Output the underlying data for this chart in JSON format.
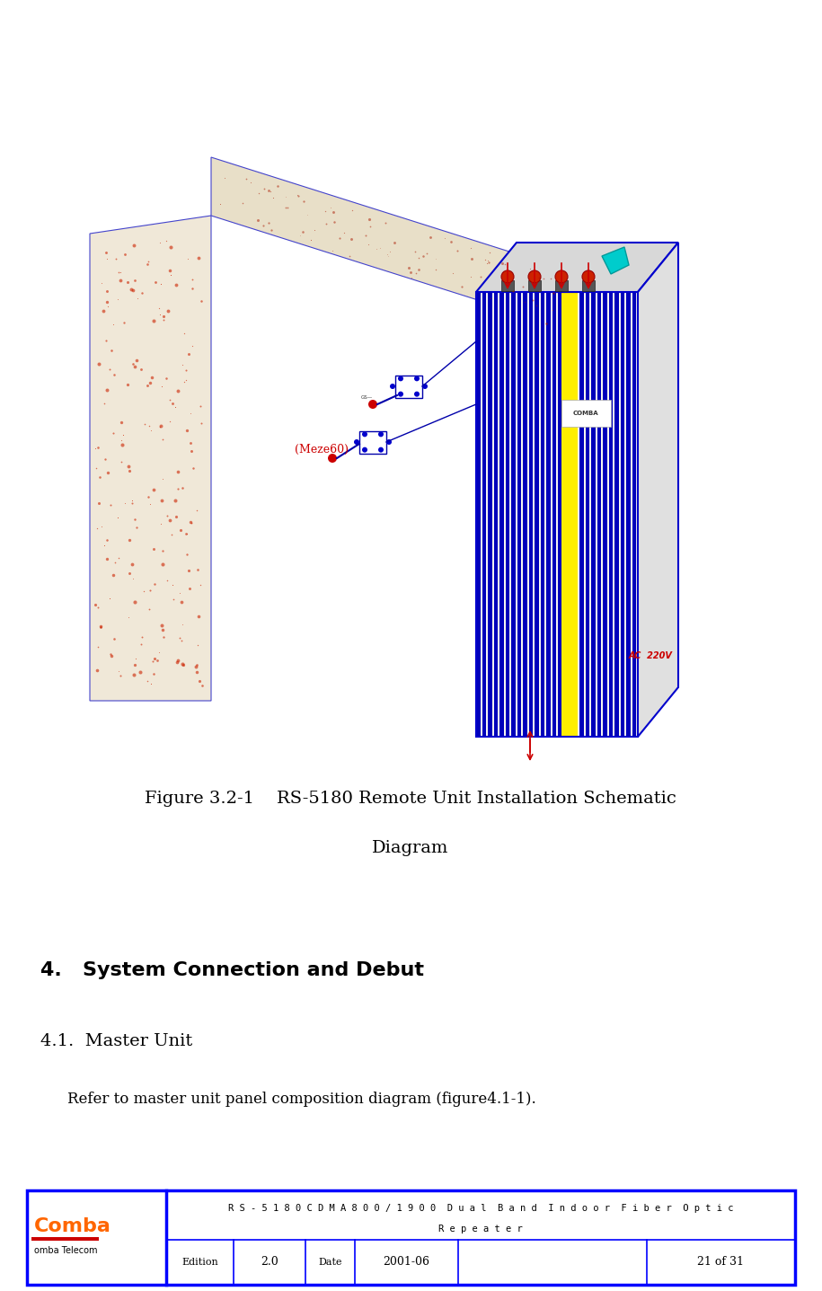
{
  "bg_color": "#ffffff",
  "fig_width": 9.15,
  "fig_height": 14.37,
  "dpi": 100,
  "figure_caption_line1": "Figure 3.2-1    RS-5180 Remote Unit Installation Schematic",
  "figure_caption_line2": "Diagram",
  "section4_title": "4.  System Connection and Debut",
  "section41_title": "4.1. Master Unit",
  "section41_body": "Refer to master unit panel composition diagram (figure4.1-1).",
  "footer_title_line1": "R S - 5 1 8 0 C D M A 8 0 0 / 1 9 0 0  D u a l  B a n d  I n d o o r  F i b e r  O p t i c",
  "footer_title_line2": "R e p e a t e r",
  "footer_edition_label": "Edition",
  "footer_edition_val": "2.0",
  "footer_date_label": "Date",
  "footer_date_val": "2001-06",
  "footer_page": "21 of 31",
  "footer_border_color": "#0000ff",
  "comba_text_color": "#ff6600"
}
